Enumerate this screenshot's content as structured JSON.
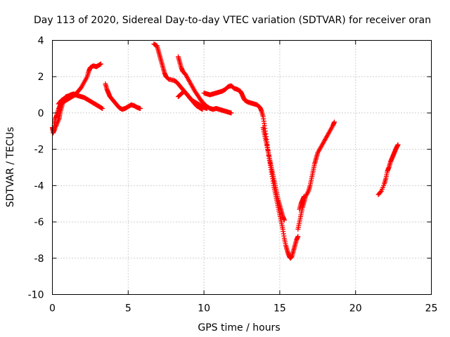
{
  "chart_data": {
    "type": "scatter",
    "title": "Day 113 of 2020, Sidereal Day-to-day VTEC variation (SDTVAR) for receiver oran",
    "xlabel": "GPS time / hours",
    "ylabel": "SDTVAR / TECUs",
    "xlim": [
      0,
      25
    ],
    "ylim": [
      -10,
      4
    ],
    "xticks": [
      "0",
      "5",
      "10",
      "15",
      "20",
      "25"
    ],
    "yticks": [
      "4",
      "2",
      "0",
      "-2",
      "-4",
      "-6",
      "-8",
      "-10"
    ],
    "grid": true,
    "marker": "plus",
    "color": "#ff0000",
    "series": [
      {
        "points": [
          [
            0.0,
            -0.8
          ],
          [
            0.05,
            -1.0
          ],
          [
            0.15,
            -0.6
          ],
          [
            0.2,
            -0.3
          ],
          [
            0.3,
            -0.1
          ],
          [
            0.4,
            0.2
          ],
          [
            0.5,
            0.4
          ],
          [
            0.6,
            0.6
          ],
          [
            0.75,
            0.75
          ],
          [
            0.9,
            0.9
          ],
          [
            1.1,
            0.95
          ],
          [
            1.3,
            1.0
          ],
          [
            1.5,
            1.0
          ],
          [
            1.7,
            0.95
          ],
          [
            1.9,
            0.9
          ],
          [
            2.1,
            0.85
          ],
          [
            2.3,
            0.75
          ],
          [
            2.5,
            0.65
          ],
          [
            2.7,
            0.55
          ],
          [
            2.9,
            0.45
          ],
          [
            3.1,
            0.35
          ],
          [
            3.3,
            0.25
          ]
        ]
      },
      {
        "points": [
          [
            0.05,
            -1.1
          ],
          [
            0.15,
            -0.9
          ],
          [
            0.3,
            -0.6
          ],
          [
            0.45,
            -0.3
          ],
          [
            0.5,
            0.0
          ],
          [
            0.6,
            0.3
          ],
          [
            0.7,
            0.6
          ],
          [
            0.9,
            0.7
          ],
          [
            1.1,
            0.8
          ],
          [
            1.3,
            0.9
          ],
          [
            1.5,
            1.0
          ],
          [
            1.7,
            1.2
          ],
          [
            1.9,
            1.4
          ],
          [
            2.1,
            1.7
          ],
          [
            2.3,
            2.0
          ],
          [
            2.4,
            2.3
          ],
          [
            2.5,
            2.5
          ],
          [
            2.7,
            2.6
          ],
          [
            2.9,
            2.55
          ],
          [
            3.0,
            2.6
          ],
          [
            3.2,
            2.7
          ]
        ]
      },
      {
        "points": [
          [
            0.4,
            0.5
          ],
          [
            0.6,
            0.7
          ],
          [
            0.8,
            0.8
          ],
          [
            1.0,
            0.9
          ],
          [
            1.2,
            1.0
          ],
          [
            1.4,
            1.05
          ],
          [
            1.6,
            1.0
          ]
        ]
      },
      {
        "points": [
          [
            3.5,
            1.6
          ],
          [
            3.6,
            1.3
          ],
          [
            3.7,
            1.1
          ],
          [
            3.8,
            0.9
          ],
          [
            4.0,
            0.7
          ],
          [
            4.2,
            0.5
          ],
          [
            4.4,
            0.3
          ],
          [
            4.6,
            0.2
          ],
          [
            4.8,
            0.25
          ],
          [
            5.0,
            0.35
          ],
          [
            5.2,
            0.45
          ],
          [
            5.4,
            0.4
          ],
          [
            5.6,
            0.3
          ],
          [
            5.8,
            0.25
          ]
        ]
      },
      {
        "points": [
          [
            6.7,
            3.8
          ],
          [
            6.9,
            3.7
          ],
          [
            7.0,
            3.4
          ],
          [
            7.1,
            3.1
          ],
          [
            7.2,
            2.8
          ],
          [
            7.3,
            2.5
          ],
          [
            7.4,
            2.2
          ],
          [
            7.5,
            2.0
          ],
          [
            7.7,
            1.85
          ],
          [
            8.0,
            1.8
          ],
          [
            8.2,
            1.7
          ],
          [
            8.4,
            1.5
          ],
          [
            8.6,
            1.3
          ],
          [
            8.8,
            1.1
          ],
          [
            9.0,
            0.9
          ],
          [
            9.2,
            0.7
          ],
          [
            9.4,
            0.6
          ],
          [
            9.6,
            0.5
          ],
          [
            9.8,
            0.4
          ],
          [
            10.0,
            0.3
          ],
          [
            10.2,
            0.25
          ]
        ]
      },
      {
        "points": [
          [
            8.3,
            3.1
          ],
          [
            8.4,
            2.8
          ],
          [
            8.5,
            2.5
          ],
          [
            8.6,
            2.3
          ],
          [
            8.8,
            2.1
          ],
          [
            9.0,
            1.8
          ],
          [
            9.2,
            1.5
          ],
          [
            9.4,
            1.2
          ],
          [
            9.6,
            0.95
          ],
          [
            9.8,
            0.7
          ],
          [
            10.0,
            0.5
          ],
          [
            10.2,
            0.35
          ],
          [
            10.4,
            0.25
          ],
          [
            10.6,
            0.2
          ],
          [
            10.8,
            0.25
          ],
          [
            11.0,
            0.2
          ],
          [
            11.2,
            0.15
          ],
          [
            11.4,
            0.1
          ],
          [
            11.6,
            0.05
          ],
          [
            11.8,
            0.0
          ]
        ]
      },
      {
        "points": [
          [
            8.3,
            0.9
          ],
          [
            8.5,
            1.05
          ],
          [
            8.7,
            1.2
          ],
          [
            8.9,
            1.0
          ],
          [
            9.1,
            0.8
          ],
          [
            9.3,
            0.6
          ],
          [
            9.5,
            0.4
          ],
          [
            9.7,
            0.3
          ],
          [
            9.9,
            0.2
          ]
        ]
      },
      {
        "points": [
          [
            10.0,
            1.1
          ],
          [
            10.2,
            1.05
          ],
          [
            10.4,
            1.0
          ],
          [
            10.6,
            1.05
          ],
          [
            10.8,
            1.1
          ],
          [
            11.0,
            1.15
          ],
          [
            11.2,
            1.2
          ],
          [
            11.4,
            1.3
          ],
          [
            11.6,
            1.45
          ],
          [
            11.8,
            1.5
          ],
          [
            12.0,
            1.35
          ],
          [
            12.2,
            1.3
          ],
          [
            12.4,
            1.2
          ],
          [
            12.5,
            1.05
          ],
          [
            12.6,
            0.85
          ],
          [
            12.7,
            0.7
          ],
          [
            12.9,
            0.6
          ],
          [
            13.1,
            0.55
          ],
          [
            13.3,
            0.5
          ],
          [
            13.5,
            0.45
          ],
          [
            13.7,
            0.3
          ],
          [
            13.8,
            0.1
          ],
          [
            13.9,
            -0.2
          ],
          [
            14.0,
            -0.7
          ],
          [
            14.1,
            -1.3
          ],
          [
            14.2,
            -1.9
          ],
          [
            14.3,
            -2.5
          ],
          [
            14.4,
            -3.0
          ],
          [
            14.5,
            -3.5
          ],
          [
            14.6,
            -4.0
          ],
          [
            14.7,
            -4.4
          ],
          [
            14.8,
            -4.8
          ],
          [
            14.9,
            -5.2
          ],
          [
            15.0,
            -5.6
          ],
          [
            15.1,
            -6.0
          ],
          [
            15.2,
            -6.4
          ],
          [
            15.3,
            -6.9
          ],
          [
            15.4,
            -7.3
          ],
          [
            15.5,
            -7.6
          ],
          [
            15.6,
            -7.85
          ],
          [
            15.7,
            -8.0
          ],
          [
            15.8,
            -7.9
          ],
          [
            15.9,
            -7.6
          ],
          [
            16.0,
            -7.3
          ],
          [
            16.1,
            -7.0
          ],
          [
            16.2,
            -6.8
          ]
        ]
      },
      {
        "points": [
          [
            13.9,
            -0.8
          ],
          [
            14.0,
            -1.2
          ],
          [
            14.1,
            -1.6
          ],
          [
            14.2,
            -2.0
          ],
          [
            14.3,
            -2.4
          ],
          [
            14.4,
            -2.8
          ],
          [
            14.5,
            -3.2
          ],
          [
            14.6,
            -3.6
          ],
          [
            14.7,
            -4.0
          ],
          [
            14.8,
            -4.4
          ],
          [
            14.9,
            -4.8
          ],
          [
            15.0,
            -5.1
          ],
          [
            15.1,
            -5.4
          ],
          [
            15.2,
            -5.7
          ],
          [
            15.3,
            -5.9
          ]
        ]
      },
      {
        "points": [
          [
            16.2,
            -6.4
          ],
          [
            16.3,
            -6.0
          ],
          [
            16.4,
            -5.6
          ],
          [
            16.5,
            -5.2
          ],
          [
            16.6,
            -4.9
          ],
          [
            16.7,
            -4.6
          ],
          [
            16.9,
            -4.3
          ],
          [
            17.0,
            -4.0
          ],
          [
            17.1,
            -3.6
          ],
          [
            17.2,
            -3.2
          ],
          [
            17.3,
            -2.8
          ],
          [
            17.4,
            -2.5
          ],
          [
            17.5,
            -2.2
          ],
          [
            17.7,
            -1.9
          ],
          [
            17.9,
            -1.6
          ],
          [
            18.1,
            -1.3
          ],
          [
            18.3,
            -1.0
          ],
          [
            18.5,
            -0.7
          ],
          [
            18.6,
            -0.5
          ]
        ]
      },
      {
        "points": [
          [
            16.3,
            -5.3
          ],
          [
            16.4,
            -5.0
          ],
          [
            16.5,
            -4.8
          ],
          [
            16.6,
            -4.6
          ]
        ]
      },
      {
        "points": [
          [
            21.5,
            -4.5
          ],
          [
            21.7,
            -4.3
          ],
          [
            21.9,
            -3.9
          ],
          [
            22.0,
            -3.6
          ],
          [
            22.1,
            -3.2
          ],
          [
            22.2,
            -3.0
          ],
          [
            22.3,
            -2.7
          ],
          [
            22.4,
            -2.5
          ],
          [
            22.5,
            -2.3
          ],
          [
            22.6,
            -2.1
          ],
          [
            22.7,
            -1.9
          ],
          [
            22.8,
            -1.75
          ]
        ]
      }
    ]
  }
}
